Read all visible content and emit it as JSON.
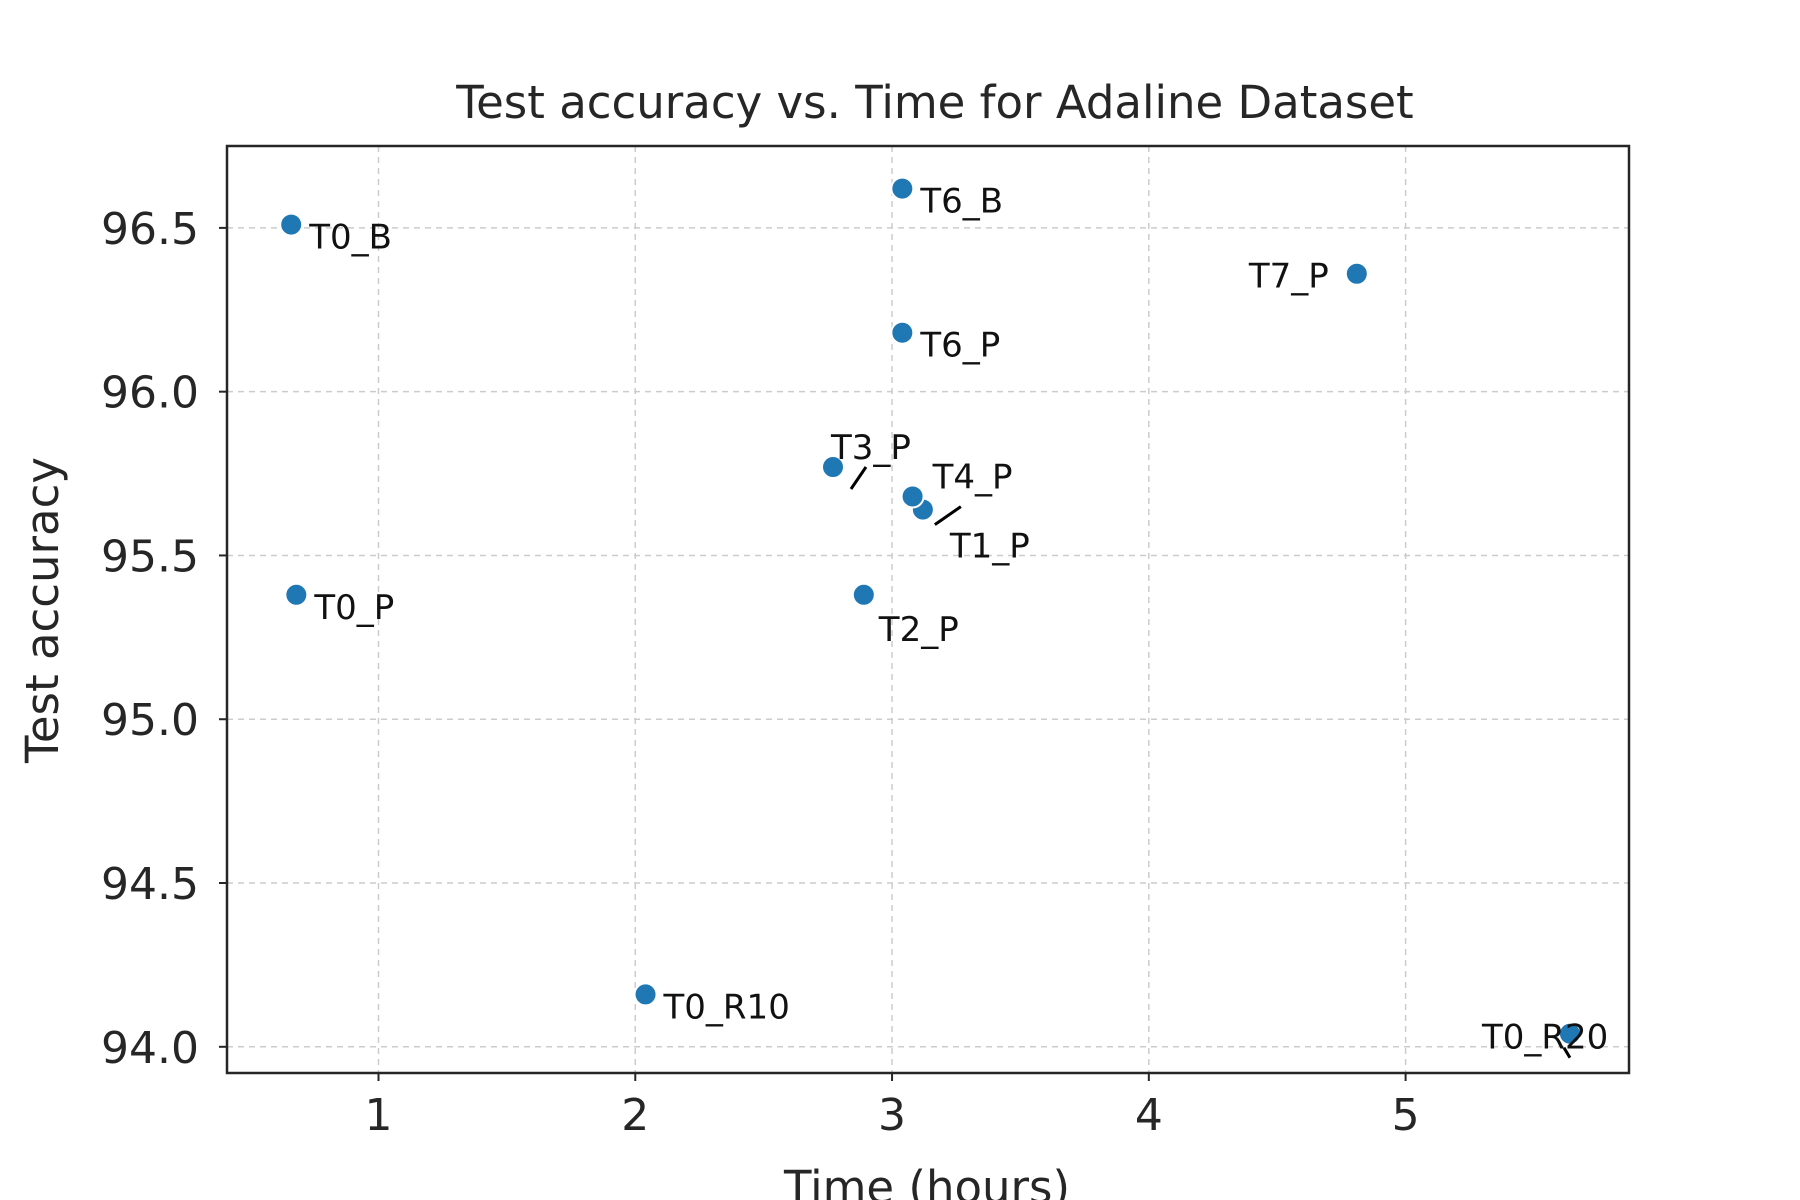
{
  "chart_data": {
    "type": "scatter",
    "title": "Test accuracy vs. Time for Adaline Dataset",
    "xlabel": "Time (hours)",
    "ylabel": "Test accuracy",
    "xlim": [
      0.41,
      5.87
    ],
    "ylim": [
      93.92,
      96.75
    ],
    "xticks": [
      1,
      2,
      3,
      4,
      5
    ],
    "yticks": [
      94.0,
      94.5,
      95.0,
      95.5,
      96.0,
      96.5
    ],
    "grid": true,
    "marker_color": "#1f77b4",
    "points": [
      {
        "label": "T0_B",
        "x": 0.66,
        "y": 96.51
      },
      {
        "label": "T0_P",
        "x": 0.68,
        "y": 95.38
      },
      {
        "label": "T0_R10",
        "x": 2.04,
        "y": 94.16
      },
      {
        "label": "T0_R20",
        "x": 5.64,
        "y": 94.04
      },
      {
        "label": "T1_P",
        "x": 3.12,
        "y": 95.64
      },
      {
        "label": "T2_P",
        "x": 2.89,
        "y": 95.38
      },
      {
        "label": "T3_P",
        "x": 2.77,
        "y": 95.77
      },
      {
        "label": "T4_P",
        "x": 3.08,
        "y": 95.68
      },
      {
        "label": "T6_B",
        "x": 3.04,
        "y": 96.62
      },
      {
        "label": "T6_P",
        "x": 3.04,
        "y": 96.18
      },
      {
        "label": "T7_P",
        "x": 4.81,
        "y": 96.36
      }
    ]
  }
}
